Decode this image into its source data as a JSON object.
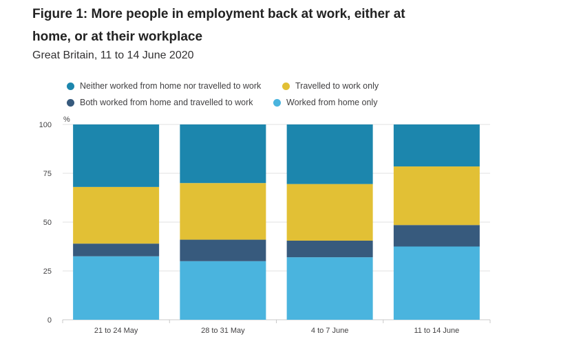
{
  "title": "Figure 1: More people in employment back at work, either at home, or at their workplace",
  "subtitle": "Great Britain, 11 to 14 June 2020",
  "chart_data": {
    "type": "bar",
    "stacked": true,
    "categories": [
      "21 to 24 May",
      "28 to 31 May",
      "4 to 7 June",
      "11 to 14 June"
    ],
    "series": [
      {
        "name": "Worked from home only",
        "color": "#4ab4de",
        "values": [
          32.5,
          30,
          32,
          37.5
        ]
      },
      {
        "name": "Both worked from home and travelled to work",
        "color": "#375a7d",
        "values": [
          6.5,
          11,
          8.5,
          11
        ]
      },
      {
        "name": "Travelled to work only",
        "color": "#e2c035",
        "values": [
          29,
          29,
          29,
          30
        ]
      },
      {
        "name": "Neither worked from home nor travelled to work",
        "color": "#1c86ad",
        "values": [
          32,
          30,
          30.5,
          21.5
        ]
      }
    ],
    "legend_order": [
      3,
      2,
      1,
      0
    ],
    "yaxis": {
      "unit": "%",
      "min": 0,
      "max": 100,
      "ticks": [
        0,
        25,
        50,
        75,
        100
      ]
    },
    "grid": true
  }
}
